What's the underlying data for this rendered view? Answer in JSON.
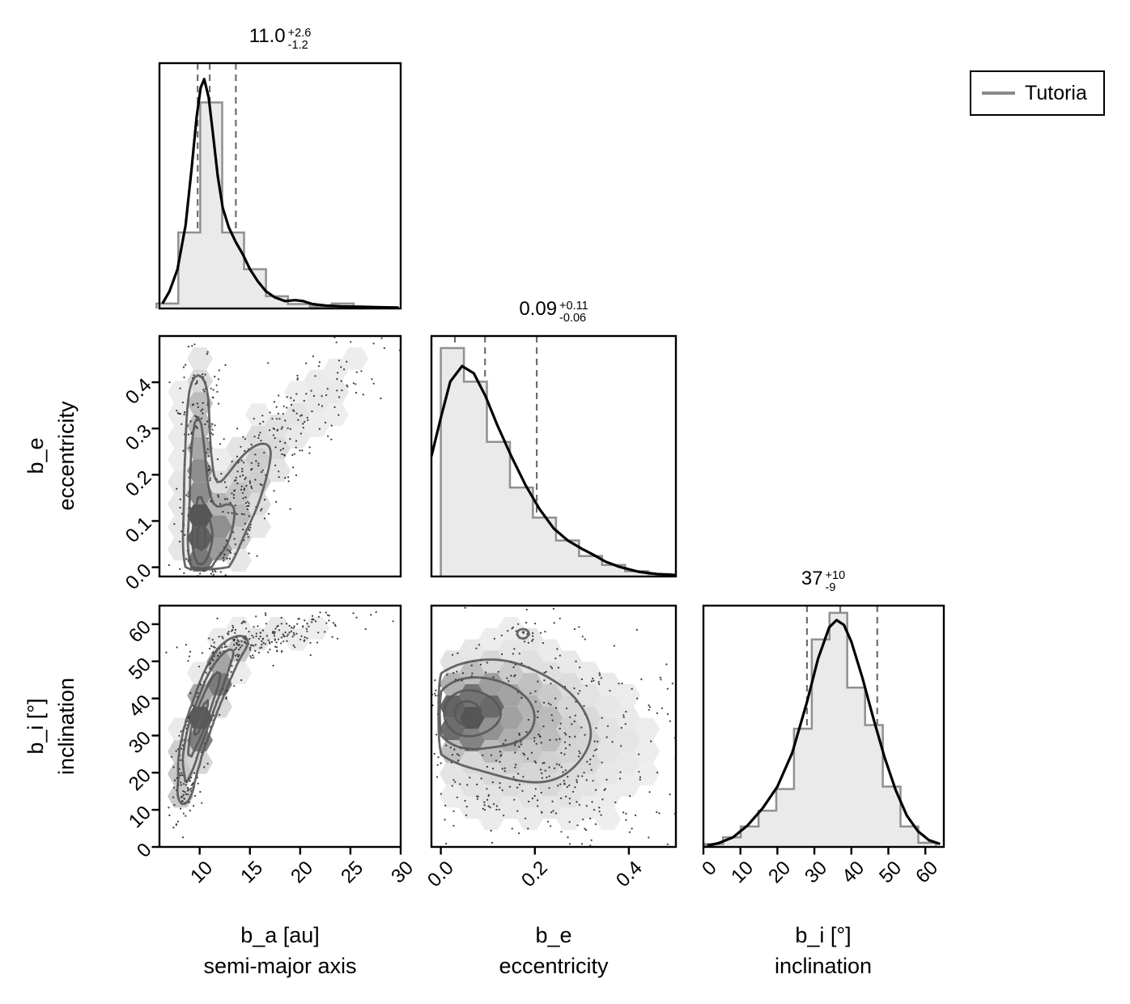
{
  "legend": {
    "label": "Tutoria",
    "line_color": "#8a8a8a"
  },
  "chart_data": {
    "type": "corner",
    "description": "Corner plot of posterior distributions for planet b orbital parameters",
    "colors": {
      "hist_fill": "#eaeaea",
      "hist_edge": "#909090",
      "kde_line": "#000000",
      "quantile_dash": "#6e6e6e",
      "contour": "#585858",
      "dot": "#111111",
      "frame": "#000000"
    },
    "variables": [
      {
        "key": "b_a",
        "axis_label": [
          "b_a [au]",
          "semi-major axis"
        ],
        "range": [
          6,
          30
        ],
        "xticks": [
          {
            "v": 10,
            "label": "10"
          },
          {
            "v": 15,
            "label": "15"
          },
          {
            "v": 20,
            "label": "20"
          },
          {
            "v": 25,
            "label": "25"
          },
          {
            "v": 30,
            "label": "30"
          }
        ],
        "yticks": [],
        "title": {
          "median": "11.0",
          "plus": "+2.6",
          "minus": "-1.2"
        },
        "quantiles": [
          9.8,
          11.0,
          13.6
        ],
        "hist": {
          "start": 5.7,
          "bin_width": 2.18,
          "heights": [
            0.02,
            0.31,
            0.84,
            0.31,
            0.16,
            0.05,
            0.018,
            0.008,
            0.02,
            0.006,
            0.003
          ]
        },
        "kde": [
          [
            6.3,
            0.02
          ],
          [
            7.0,
            0.07
          ],
          [
            7.8,
            0.16
          ],
          [
            8.6,
            0.34
          ],
          [
            9.2,
            0.57
          ],
          [
            9.7,
            0.78
          ],
          [
            10.1,
            0.9
          ],
          [
            10.45,
            0.935
          ],
          [
            10.9,
            0.86
          ],
          [
            11.3,
            0.72
          ],
          [
            11.8,
            0.54
          ],
          [
            12.3,
            0.41
          ],
          [
            12.9,
            0.33
          ],
          [
            13.6,
            0.27
          ],
          [
            14.3,
            0.22
          ],
          [
            15.0,
            0.16
          ],
          [
            15.8,
            0.11
          ],
          [
            16.6,
            0.07
          ],
          [
            17.5,
            0.045
          ],
          [
            18.5,
            0.03
          ],
          [
            19.5,
            0.034
          ],
          [
            20.3,
            0.03
          ],
          [
            21.2,
            0.018
          ],
          [
            22.5,
            0.012
          ],
          [
            24,
            0.009
          ],
          [
            26,
            0.007
          ],
          [
            28,
            0.005
          ],
          [
            29.8,
            0.004
          ]
        ]
      },
      {
        "key": "b_e",
        "axis_label": [
          "b_e",
          "eccentricity"
        ],
        "range": [
          -0.02,
          0.5
        ],
        "xticks": [
          {
            "v": 0.0,
            "label": "0.0"
          },
          {
            "v": 0.2,
            "label": "0.2"
          },
          {
            "v": 0.4,
            "label": "0.4"
          }
        ],
        "yticks": [
          {
            "v": 0.0,
            "label": "0.0"
          },
          {
            "v": 0.1,
            "label": "0.1"
          },
          {
            "v": 0.2,
            "label": "0.2"
          },
          {
            "v": 0.3,
            "label": "0.3"
          },
          {
            "v": 0.4,
            "label": "0.4"
          }
        ],
        "title": {
          "median": "0.09",
          "plus": "+0.11",
          "minus": "-0.06"
        },
        "quantiles": [
          0.03,
          0.094,
          0.204
        ],
        "hist": {
          "start": 0.0,
          "bin_width": 0.049,
          "heights": [
            0.95,
            0.81,
            0.56,
            0.37,
            0.245,
            0.15,
            0.085,
            0.048,
            0.022,
            0.01
          ]
        },
        "kde": [
          [
            -0.02,
            0.5
          ],
          [
            0.0,
            0.66
          ],
          [
            0.02,
            0.81
          ],
          [
            0.045,
            0.875
          ],
          [
            0.07,
            0.845
          ],
          [
            0.095,
            0.75
          ],
          [
            0.12,
            0.63
          ],
          [
            0.15,
            0.5
          ],
          [
            0.18,
            0.38
          ],
          [
            0.21,
            0.28
          ],
          [
            0.24,
            0.2
          ],
          [
            0.27,
            0.15
          ],
          [
            0.3,
            0.115
          ],
          [
            0.325,
            0.09
          ],
          [
            0.35,
            0.062
          ],
          [
            0.38,
            0.04
          ],
          [
            0.42,
            0.02
          ],
          [
            0.46,
            0.01
          ],
          [
            0.5,
            0.006
          ]
        ]
      },
      {
        "key": "b_i",
        "axis_label": [
          "b_i [°]",
          "inclination"
        ],
        "range": [
          0,
          65
        ],
        "xticks": [
          {
            "v": 0,
            "label": "0"
          },
          {
            "v": 10,
            "label": "10"
          },
          {
            "v": 20,
            "label": "20"
          },
          {
            "v": 30,
            "label": "30"
          },
          {
            "v": 40,
            "label": "40"
          },
          {
            "v": 50,
            "label": "50"
          },
          {
            "v": 60,
            "label": "60"
          }
        ],
        "yticks": [
          {
            "v": 0,
            "label": "0"
          },
          {
            "v": 10,
            "label": "10"
          },
          {
            "v": 20,
            "label": "20"
          },
          {
            "v": 30,
            "label": "30"
          },
          {
            "v": 40,
            "label": "40"
          },
          {
            "v": 50,
            "label": "50"
          },
          {
            "v": 60,
            "label": "60"
          }
        ],
        "title": {
          "median": "37",
          "plus": "+10",
          "minus": "-9"
        },
        "quantiles": [
          28,
          37,
          47
        ],
        "hist": {
          "start": 0.5,
          "bin_width": 4.8,
          "heights": [
            0.012,
            0.04,
            0.085,
            0.15,
            0.24,
            0.49,
            0.86,
            0.97,
            0.66,
            0.505,
            0.25,
            0.085,
            0.017
          ]
        },
        "kde": [
          [
            1,
            0.005
          ],
          [
            4,
            0.015
          ],
          [
            8,
            0.04
          ],
          [
            12,
            0.09
          ],
          [
            16,
            0.16
          ],
          [
            20,
            0.25
          ],
          [
            24,
            0.39
          ],
          [
            28,
            0.6
          ],
          [
            31,
            0.78
          ],
          [
            34,
            0.91
          ],
          [
            36,
            0.94
          ],
          [
            38,
            0.92
          ],
          [
            40,
            0.85
          ],
          [
            43,
            0.7
          ],
          [
            46,
            0.53
          ],
          [
            49,
            0.37
          ],
          [
            52,
            0.235
          ],
          [
            55,
            0.13
          ],
          [
            58,
            0.065
          ],
          [
            61,
            0.028
          ],
          [
            64,
            0.012
          ]
        ]
      }
    ],
    "panels_2d": [
      {
        "x": 0,
        "y": 1,
        "seed": 11,
        "n_points": 560,
        "dot_hide_frac": 0.3,
        "contour_fracs": [
          0.075,
          0.25,
          0.55,
          0.88
        ],
        "clip_y_zero": true,
        "components": [
          {
            "mx": 10.1,
            "my": 0.055,
            "sx": 0.75,
            "sy": 0.048,
            "rho": 0.1,
            "w": 1.0,
            "sw": 0.5
          },
          {
            "mx": 9.9,
            "my": 0.16,
            "sx": 0.75,
            "sy": 0.07,
            "rho": 0,
            "w": 0.55,
            "sw": 0.35
          },
          {
            "mx": 9.8,
            "my": 0.28,
            "sx": 0.65,
            "sy": 0.06,
            "rho": 0,
            "w": 0.3,
            "sw": 0.3
          },
          {
            "mx": 11.9,
            "my": 0.07,
            "sx": 1.1,
            "sy": 0.05,
            "rho": 0.2,
            "w": 0.38,
            "sw": 0.25
          },
          {
            "mx": 13.5,
            "my": 0.14,
            "sx": 1.6,
            "sy": 0.075,
            "rho": 0.55,
            "w": 0.16,
            "sw": 0.3
          },
          {
            "mx": 15.2,
            "my": 0.17,
            "sx": 1.5,
            "sy": 0.07,
            "rho": 0.6,
            "w": 0.1,
            "sw": 0.3
          },
          {
            "mx": 19.0,
            "my": 0.3,
            "sx": 4.2,
            "sy": 0.095,
            "rho": 0.88,
            "w": 0.045,
            "sw": 1.35
          },
          {
            "mx": 9.9,
            "my": 0.375,
            "sx": 0.95,
            "sy": 0.05,
            "rho": 0,
            "w": 0.1,
            "sw": 0.45
          }
        ]
      },
      {
        "x": 0,
        "y": 2,
        "seed": 23,
        "n_points": 500,
        "dot_hide_frac": 0.3,
        "contour_fracs": [
          0.085,
          0.27,
          0.55,
          0.85
        ],
        "components": [
          {
            "mx": 8.6,
            "my": 16,
            "sx": 0.55,
            "sy": 3.2,
            "rho": 0.3,
            "w": 0.32,
            "sw": 0.5
          },
          {
            "mx": 9.0,
            "my": 24,
            "sx": 0.6,
            "sy": 3.5,
            "rho": 0.3,
            "w": 0.65,
            "sw": 0.4
          },
          {
            "mx": 9.7,
            "my": 31,
            "sx": 0.65,
            "sy": 3.5,
            "rho": 0.4,
            "w": 0.95,
            "sw": 0.4
          },
          {
            "mx": 10.4,
            "my": 36.5,
            "sx": 0.7,
            "sy": 3.5,
            "rho": 0.5,
            "w": 1.0,
            "sw": 0.4
          },
          {
            "mx": 11.3,
            "my": 43,
            "sx": 0.8,
            "sy": 3.5,
            "rho": 0.5,
            "w": 0.78,
            "sw": 0.4
          },
          {
            "mx": 12.3,
            "my": 49,
            "sx": 0.9,
            "sy": 3.2,
            "rho": 0.5,
            "w": 0.45,
            "sw": 0.4
          },
          {
            "mx": 13.4,
            "my": 53.5,
            "sx": 1.0,
            "sy": 2.6,
            "rho": 0.5,
            "w": 0.2,
            "sw": 0.4
          },
          {
            "mx": 17.0,
            "my": 56.5,
            "sx": 3.2,
            "sy": 2.8,
            "rho": 0.65,
            "w": 0.05,
            "sw": 1.5
          }
        ]
      },
      {
        "x": 1,
        "y": 2,
        "seed": 37,
        "n_points": 600,
        "dot_hide_frac": 0.3,
        "contour_fracs": [
          0.075,
          0.26,
          0.55,
          0.85
        ],
        "clip_x_zero": true,
        "components": [
          {
            "mx": 0.045,
            "my": 35.5,
            "sx": 0.038,
            "sy": 5.0,
            "rho": 0,
            "w": 1.0,
            "sw": 0.5
          },
          {
            "mx": 0.1,
            "my": 37.5,
            "sx": 0.06,
            "sy": 6.5,
            "rho": 0,
            "w": 0.55,
            "sw": 0.5
          },
          {
            "mx": 0.16,
            "my": 33,
            "sx": 0.09,
            "sy": 9.0,
            "rho": 0,
            "w": 0.22,
            "sw": 0.5
          },
          {
            "mx": 0.25,
            "my": 28,
            "sx": 0.1,
            "sy": 10,
            "rho": 0,
            "w": 0.07,
            "sw": 0.5
          },
          {
            "mx": 0.175,
            "my": 57.5,
            "sx": 0.013,
            "sy": 1.3,
            "rho": 0,
            "w": 0.16,
            "sw": 0.1
          },
          {
            "mx": 0.16,
            "my": 14,
            "sx": 0.1,
            "sy": 5.5,
            "rho": 0,
            "w": 0.03,
            "sw": 0.6
          },
          {
            "mx": 0.3,
            "my": 30,
            "sx": 0.12,
            "sy": 16,
            "rho": 0,
            "w": 0.012,
            "sw": 1.2
          }
        ]
      }
    ]
  }
}
